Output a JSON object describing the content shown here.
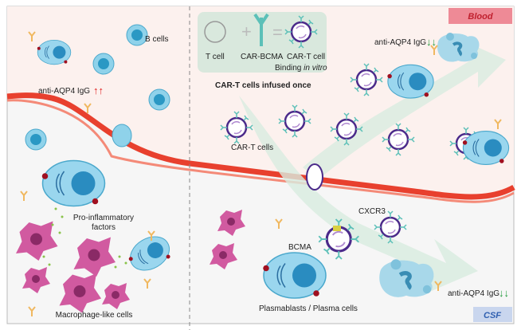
{
  "regions": {
    "blood": "Blood",
    "csf": "CSF"
  },
  "legend": {
    "t_cell": "T cell",
    "car_bcma": "CAR-BCMA",
    "car_t_cell": "CAR-T cell",
    "binding_prefix": "Binding ",
    "binding_italic": "in vitro"
  },
  "labels": {
    "b_cells": "B cells",
    "igg_left": "anti-AQP4 IgG",
    "igg_left_arrows": "↑↑",
    "infused": "CAR-T cells infused once",
    "igg_blood": "anti-AQP4 IgG",
    "igg_blood_arrows": "↓↓",
    "car_t_cells": "CAR-T cells",
    "cxcr3": "CXCR3",
    "bcma": "BCMA",
    "plasma": "Plasmablasts / Plasma cells",
    "igg_csf": "anti-AQP4 IgG",
    "igg_csf_arrows": "↓↓",
    "pro_inflam_1": "Pro-inflammatory",
    "pro_inflam_2": "factors",
    "macrophage": "Macrophage-like cells"
  },
  "colors": {
    "blood_bg": "#fcf1ee",
    "csf_bg": "#f6f6f6",
    "vessel": "#e8402e",
    "blood_badge": "#ee8a96",
    "blood_text": "#c0202e",
    "csf_badge": "#c9d6ee",
    "csf_text": "#2f5fb0",
    "b_cell": "#6fc3e0",
    "car_t": "#4b2a8a",
    "car": "#5cc0b8",
    "macrophage": "#d15aa0",
    "antibody": "#f0b860",
    "up_arrow": "#e02020",
    "down_arrow": "#1f9a3a"
  }
}
